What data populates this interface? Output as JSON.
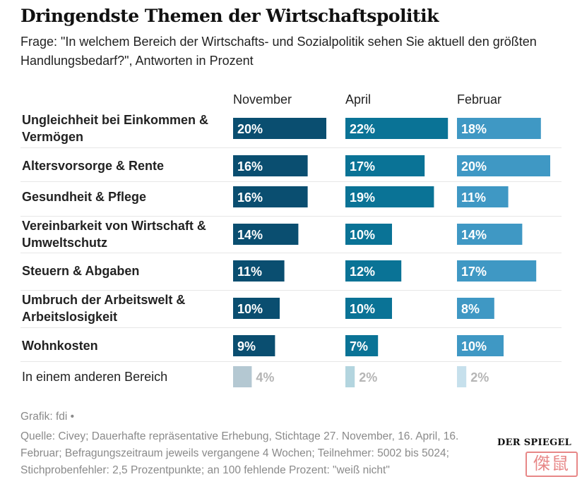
{
  "header": {
    "title": "Dringendste Themen der Wirtschaftspolitik",
    "subtitle": "Frage: \"In welchem Bereich der Wirtschafts- und Sozialpolitik sehen Sie aktuell den größten Handlungsbedarf?\", Antworten in Prozent"
  },
  "chart_data": {
    "type": "bar",
    "title": "Dringendste Themen der Wirtschaftspolitik",
    "xlabel": "",
    "ylabel": "",
    "unit": "%",
    "xlim": [
      0,
      22
    ],
    "orientation": "horizontal-small-multiples",
    "categories": [
      [
        "Ungleichheit bei Einkommen &",
        "Vermögen"
      ],
      [
        "Altersvorsorge & Rente"
      ],
      [
        "Gesundheit & Pflege"
      ],
      [
        "Vereinbarkeit von Wirtschaft &",
        "Umweltschutz"
      ],
      [
        "Steuern & Abgaben"
      ],
      [
        "Umbruch der Arbeitswelt &",
        "Arbeitslosigkeit"
      ],
      [
        "Wohnkosten"
      ],
      [
        "In einem anderen Bereich"
      ]
    ],
    "highlight_categories": 7,
    "series": [
      {
        "name": "November",
        "values": [
          20,
          16,
          16,
          14,
          11,
          10,
          9,
          4
        ],
        "color": "#0a4e70",
        "muted_color": "#b4c8d2"
      },
      {
        "name": "April",
        "values": [
          22,
          17,
          19,
          10,
          12,
          10,
          7,
          2
        ],
        "color": "#0a7396",
        "muted_color": "#b3d5df"
      },
      {
        "name": "Februar",
        "values": [
          18,
          20,
          11,
          14,
          17,
          8,
          10,
          2
        ],
        "color": "#3f98c4",
        "muted_color": "#c6e0ec"
      }
    ]
  },
  "footer": {
    "credit": "Grafik: fdi •",
    "source_lines": [
      "Quelle: Civey; Dauerhafte repräsentative Erhebung, Stichtage 27. November, 16. April, 16.",
      "Februar; Befragungszeitraum jeweils vergangene 4 Wochen; Teilnehmer: 5002 bis 5024;",
      "Stichprobenfehler: 2,5 Prozentpunkte; an 100 fehlende Prozent: \"weiß nicht\""
    ],
    "logo": "DER SPIEGEL",
    "stamp": "傑鼠"
  }
}
